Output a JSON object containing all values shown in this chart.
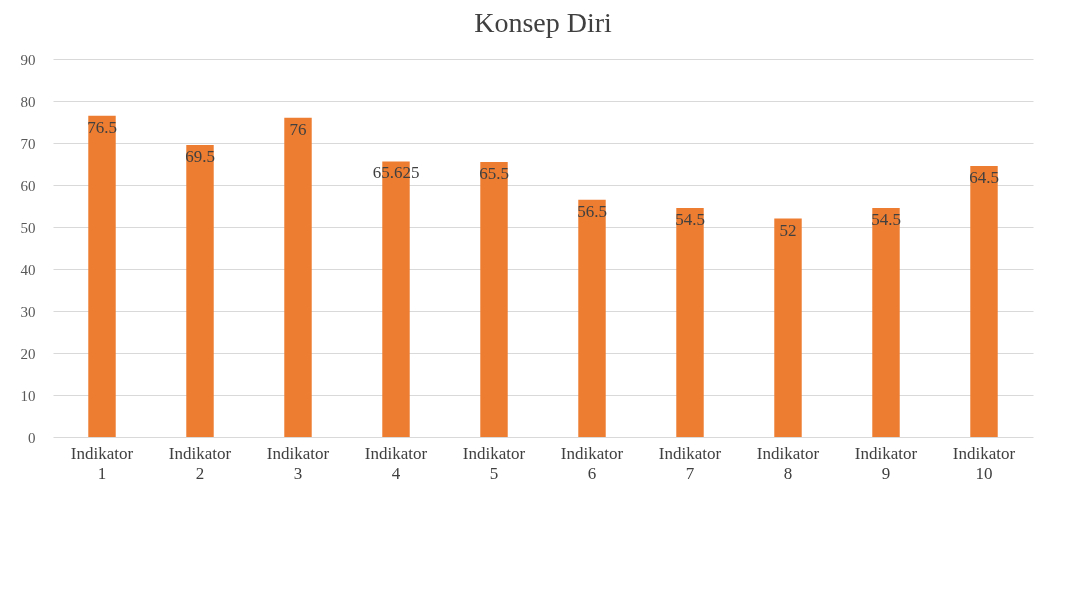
{
  "chart_data": {
    "type": "bar",
    "title": "Konsep Diri",
    "categories": [
      "Indikator 1",
      "Indikator 2",
      "Indikator 3",
      "Indikator 4",
      "Indikator 5",
      "Indikator 6",
      "Indikator 7",
      "Indikator 8",
      "Indikator 9",
      "Indikator 10"
    ],
    "values": [
      76.5,
      69.5,
      76,
      65.625,
      65.5,
      56.5,
      54.5,
      52,
      54.5,
      64.5
    ],
    "color": "#ed7d31",
    "ylim": [
      0,
      90
    ],
    "yticks": [
      0,
      10,
      20,
      30,
      40,
      50,
      60,
      70,
      80,
      90
    ],
    "grid": true,
    "data_labels": true
  }
}
